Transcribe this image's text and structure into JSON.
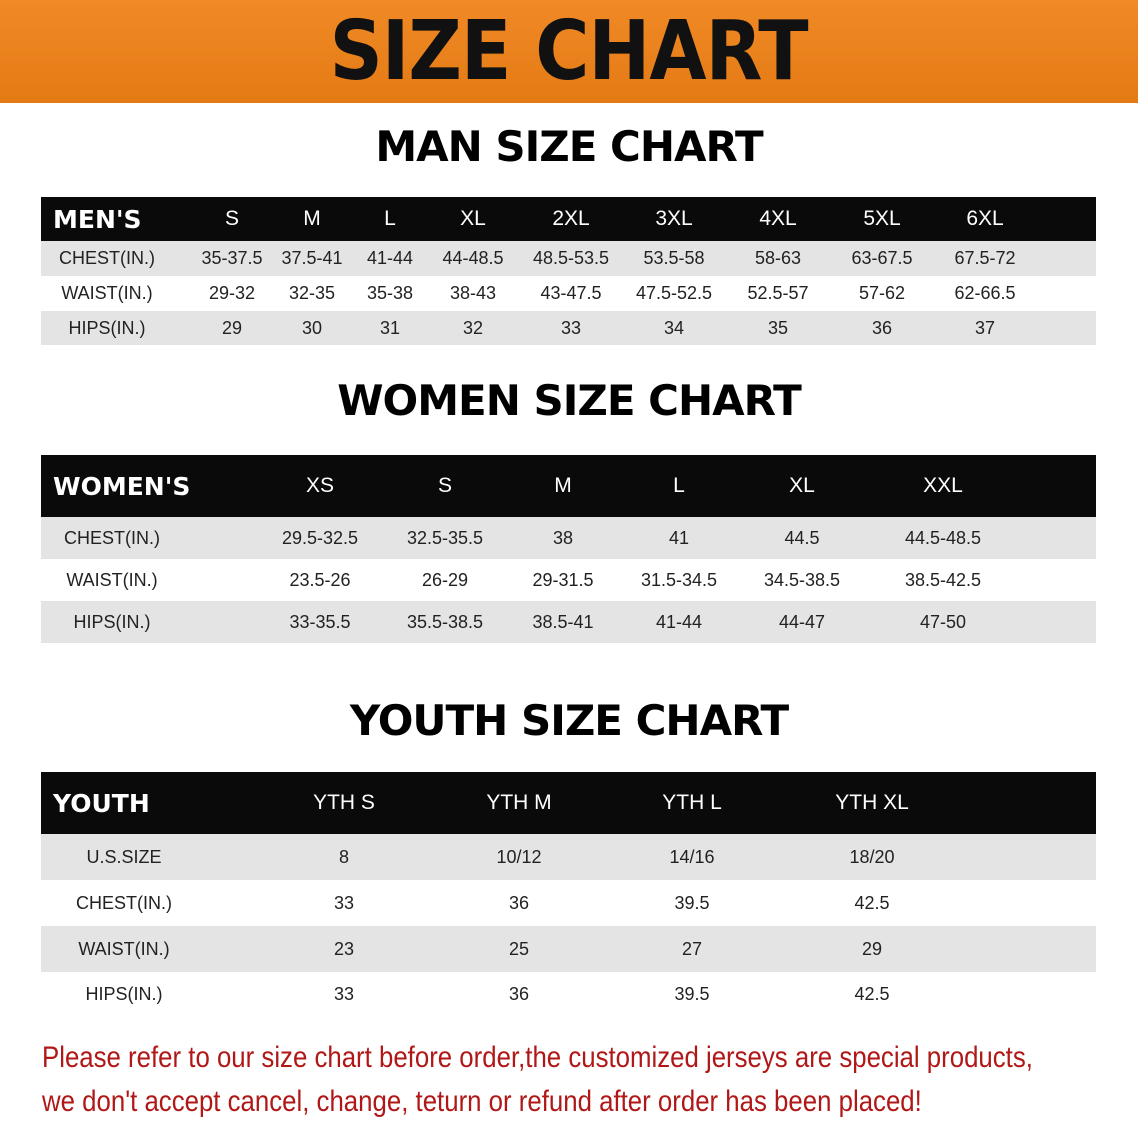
{
  "banner_title": "SIZE CHART",
  "tables": [
    {
      "title": "MAN SIZE CHART",
      "header": [
        "MEN'S",
        "S",
        "M",
        "L",
        "XL",
        "2XL",
        "3XL",
        "4XL",
        "5XL",
        "6XL"
      ],
      "rows": [
        [
          "CHEST(IN.)",
          "35-37.5",
          "37.5-41",
          "41-44",
          "44-48.5",
          "48.5-53.5",
          "53.5-58",
          "58-63",
          "63-67.5",
          "67.5-72"
        ],
        [
          "WAIST(IN.)",
          "29-32",
          "32-35",
          "35-38",
          "38-43",
          "43-47.5",
          "47.5-52.5",
          "52.5-57",
          "57-62",
          "62-66.5"
        ],
        [
          "HIPS(IN.)",
          "29",
          "30",
          "31",
          "32",
          "33",
          "34",
          "35",
          "36",
          "37"
        ]
      ]
    },
    {
      "title": "WOMEN SIZE CHART",
      "header": [
        "WOMEN'S",
        "XS",
        "S",
        "M",
        "L",
        "XL",
        "XXL"
      ],
      "rows": [
        [
          "CHEST(IN.)",
          "29.5-32.5",
          "32.5-35.5",
          "38",
          "41",
          "44.5",
          "44.5-48.5"
        ],
        [
          "WAIST(IN.)",
          "23.5-26",
          "26-29",
          "29-31.5",
          "31.5-34.5",
          "34.5-38.5",
          "38.5-42.5"
        ],
        [
          "HIPS(IN.)",
          "33-35.5",
          "35.5-38.5",
          "38.5-41",
          "41-44",
          "44-47",
          "47-50"
        ]
      ]
    },
    {
      "title": "YOUTH SIZE CHART",
      "header": [
        "YOUTH",
        "YTH S",
        "YTH M",
        "YTH L",
        "YTH XL"
      ],
      "rows": [
        [
          "U.S.SIZE",
          "8",
          "10/12",
          "14/16",
          "18/20"
        ],
        [
          "CHEST(IN.)",
          "33",
          "36",
          "39.5",
          "42.5"
        ],
        [
          "WAIST(IN.)",
          "23",
          "25",
          "27",
          "29"
        ],
        [
          "HIPS(IN.)",
          "33",
          "36",
          "39.5",
          "42.5"
        ]
      ]
    }
  ],
  "notice": [
    "Please refer to our size chart before order,the customized jerseys are special products,",
    "we don't accept cancel, change, teturn or refund after order has been placed!"
  ],
  "colors": {
    "banner": "#e98019",
    "header_bg": "#0a0a0a",
    "stripe": "#e4e4e4",
    "notice": "#b01818"
  }
}
